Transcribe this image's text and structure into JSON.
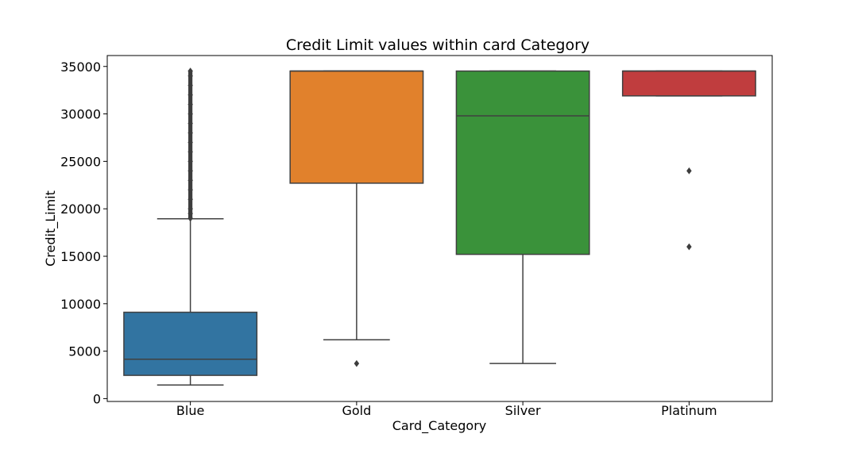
{
  "chart_data": {
    "type": "box",
    "title": "Credit Limit values within card Category",
    "xlabel": "Card_Category",
    "ylabel": "Credit_Limit",
    "ylim": [
      -300,
      36150
    ],
    "yticks": [
      0,
      5000,
      10000,
      15000,
      20000,
      25000,
      30000,
      35000
    ],
    "grid": false,
    "categories": [
      "Blue",
      "Gold",
      "Silver",
      "Platinum"
    ],
    "colors": [
      "#3274a1",
      "#e1812c",
      "#3a923a",
      "#c03d3e"
    ],
    "boxes": [
      {
        "category": "Blue",
        "whisker_low": 1438.3,
        "q1": 2450,
        "median": 4150,
        "q3": 9100,
        "whisker_high": 18950,
        "outliers": [
          19000,
          19500,
          20000,
          21000,
          22000,
          23000,
          24000,
          25000,
          26000,
          27000,
          28000,
          29000,
          30000,
          31000,
          32000,
          33000,
          34000,
          34516
        ]
      },
      {
        "category": "Gold",
        "whisker_low": 6200,
        "q1": 22700,
        "median": 34516,
        "q3": 34516,
        "whisker_high": 34516,
        "outliers": [
          3700
        ]
      },
      {
        "category": "Silver",
        "whisker_low": 3700,
        "q1": 15200,
        "median": 29800,
        "q3": 34516,
        "whisker_high": 34516,
        "outliers": []
      },
      {
        "category": "Platinum",
        "whisker_low": 31900,
        "q1": 31900,
        "median": 34516,
        "q3": 34516,
        "whisker_high": 34516,
        "outliers": [
          24000,
          16000
        ]
      }
    ]
  }
}
